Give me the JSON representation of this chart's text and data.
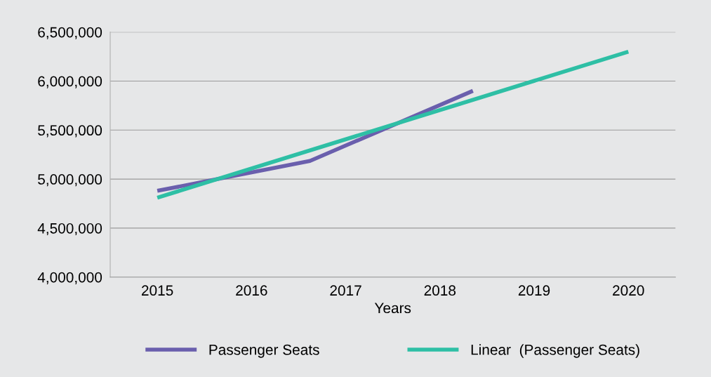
{
  "chart_data": {
    "type": "line",
    "xlabel": "Years",
    "x": [
      2015,
      2016.62,
      2018.35
    ],
    "series": [
      {
        "name": "Passenger Seats",
        "color": "#6a5fad",
        "values": [
          4880000,
          5185000,
          5900000
        ]
      },
      {
        "name": "Linear  (Passenger Seats)",
        "color": "#2ebfa5",
        "x": [
          2015,
          2020
        ],
        "values": [
          4810000,
          6300000
        ]
      }
    ],
    "xlim": [
      2014.5,
      2020.5
    ],
    "xticks": [
      2015,
      2016,
      2017,
      2018,
      2019,
      2020
    ],
    "ylim": [
      4000000,
      6500000
    ],
    "yticks": [
      {
        "value": 4000000,
        "label": "4,000,000"
      },
      {
        "value": 4500000,
        "label": "4,500,000"
      },
      {
        "value": 5000000,
        "label": "5,000,000"
      },
      {
        "value": 5500000,
        "label": "5,500,000"
      },
      {
        "value": 6000000,
        "label": "6,000,000"
      },
      {
        "value": 6500000,
        "label": "6,500,000"
      }
    ],
    "grid": "y",
    "legend": "bottom",
    "marker": "none",
    "line_style": "solid"
  }
}
